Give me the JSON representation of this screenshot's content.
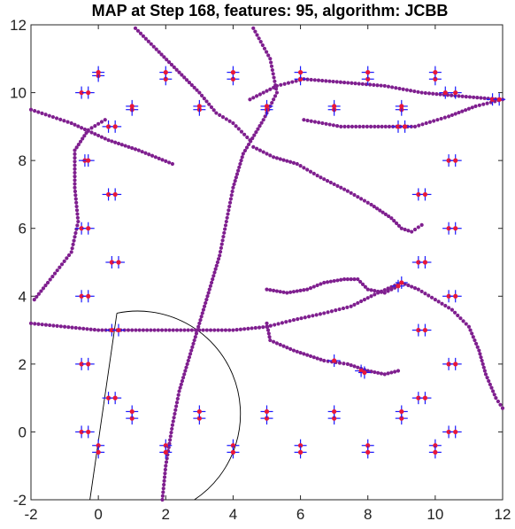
{
  "chart_data": {
    "type": "scatter",
    "title": "MAP at Step 168, features: 95, algorithm: JCBB",
    "xlabel": "",
    "ylabel": "",
    "xlim": [
      -2,
      12
    ],
    "ylim": [
      -2,
      12
    ],
    "xticks": [
      "-2",
      "0",
      "2",
      "4",
      "6",
      "8",
      "10",
      "12"
    ],
    "yticks": [
      "-2",
      "0",
      "2",
      "4",
      "6",
      "8",
      "10",
      "12"
    ],
    "grid": false,
    "colors": {
      "landmark_marker": "#1a1aff",
      "landmark_estimate": "#e8173a",
      "trajectory": "#7f1f8f",
      "fov": "#000000"
    },
    "landmarks": [
      [
        -0.5,
        10
      ],
      [
        -0.3,
        10
      ],
      [
        0,
        10.5
      ],
      [
        0,
        10.6
      ],
      [
        1,
        9.5
      ],
      [
        1,
        9.6
      ],
      [
        2,
        10.4
      ],
      [
        2,
        10.6
      ],
      [
        3,
        9.5
      ],
      [
        3,
        9.6
      ],
      [
        4,
        10.4
      ],
      [
        4,
        10.6
      ],
      [
        5,
        9.5
      ],
      [
        5,
        9.6
      ],
      [
        6,
        10.4
      ],
      [
        6,
        10.6
      ],
      [
        7,
        9.5
      ],
      [
        7,
        9.6
      ],
      [
        8,
        10.4
      ],
      [
        8,
        10.6
      ],
      [
        9,
        9.5
      ],
      [
        9,
        9.6
      ],
      [
        10,
        10.4
      ],
      [
        10,
        10.6
      ],
      [
        0.3,
        9
      ],
      [
        0.5,
        9
      ],
      [
        8.9,
        9
      ],
      [
        9.1,
        9
      ],
      [
        11.7,
        9.8
      ],
      [
        11.9,
        9.8
      ],
      [
        10.3,
        10
      ],
      [
        10.6,
        10
      ],
      [
        -0.4,
        8
      ],
      [
        -0.3,
        8
      ],
      [
        10.4,
        8
      ],
      [
        10.6,
        8
      ],
      [
        0.3,
        7
      ],
      [
        0.5,
        7
      ],
      [
        9.5,
        7
      ],
      [
        9.7,
        7
      ],
      [
        -0.5,
        6
      ],
      [
        -0.3,
        6
      ],
      [
        10.4,
        6
      ],
      [
        10.6,
        6
      ],
      [
        0.4,
        5
      ],
      [
        0.6,
        5
      ],
      [
        9.5,
        5
      ],
      [
        9.7,
        5
      ],
      [
        -0.5,
        4
      ],
      [
        -0.3,
        4
      ],
      [
        8.9,
        4.3
      ],
      [
        9.0,
        4.4
      ],
      [
        10.4,
        4
      ],
      [
        10.6,
        4
      ],
      [
        0.4,
        3
      ],
      [
        0.6,
        3
      ],
      [
        9.5,
        3
      ],
      [
        9.7,
        3
      ],
      [
        -0.5,
        2
      ],
      [
        -0.3,
        2
      ],
      [
        7,
        2.1
      ],
      [
        7.8,
        1.8
      ],
      [
        7.9,
        1.75
      ],
      [
        10.4,
        2
      ],
      [
        10.6,
        2
      ],
      [
        0.3,
        1
      ],
      [
        0.5,
        1
      ],
      [
        9.5,
        1
      ],
      [
        9.7,
        1
      ],
      [
        -0.5,
        0
      ],
      [
        -0.3,
        0
      ],
      [
        1,
        0.4
      ],
      [
        1,
        0.6
      ],
      [
        3,
        0.4
      ],
      [
        3,
        0.6
      ],
      [
        5,
        0.4
      ],
      [
        5,
        0.6
      ],
      [
        7,
        0.4
      ],
      [
        7,
        0.6
      ],
      [
        9,
        0.4
      ],
      [
        9,
        0.6
      ],
      [
        10.4,
        0
      ],
      [
        10.6,
        0
      ],
      [
        0,
        -0.4
      ],
      [
        0,
        -0.6
      ],
      [
        2,
        -0.4
      ],
      [
        2,
        -0.6
      ],
      [
        4,
        -0.4
      ],
      [
        4,
        -0.6
      ],
      [
        6,
        -0.4
      ],
      [
        6,
        -0.6
      ],
      [
        8,
        -0.4
      ],
      [
        8,
        -0.6
      ],
      [
        10,
        -0.4
      ],
      [
        10,
        -0.6
      ]
    ],
    "trajectories": [
      [
        [
          -2,
          9.5
        ],
        [
          -0.8,
          9.1
        ],
        [
          0.3,
          8.6
        ],
        [
          1.2,
          8.3
        ],
        [
          2.2,
          7.9
        ]
      ],
      [
        [
          -1.9,
          3.9
        ],
        [
          -1.5,
          4.4
        ],
        [
          -0.8,
          5.3
        ],
        [
          -0.6,
          6.2
        ],
        [
          -0.7,
          7.2
        ],
        [
          -0.7,
          8.3
        ],
        [
          -0.3,
          8.9
        ],
        [
          0.2,
          9.2
        ]
      ],
      [
        [
          1.1,
          11.9
        ],
        [
          1.8,
          11.2
        ],
        [
          2.4,
          10.6
        ],
        [
          3,
          10
        ],
        [
          3.5,
          9.4
        ],
        [
          4,
          9.1
        ],
        [
          4.5,
          8.6
        ]
      ],
      [
        [
          4.6,
          11.9
        ],
        [
          5.1,
          11
        ],
        [
          5.3,
          10
        ],
        [
          4.9,
          9.2
        ],
        [
          4.3,
          8.2
        ],
        [
          4,
          7.2
        ],
        [
          3.8,
          6.2
        ],
        [
          3.6,
          5.2
        ],
        [
          3.3,
          4.2
        ],
        [
          3,
          3.2
        ],
        [
          2.7,
          2.2
        ],
        [
          2.4,
          1.2
        ],
        [
          2.2,
          0.2
        ],
        [
          2,
          -1
        ],
        [
          1.9,
          -2
        ]
      ],
      [
        [
          4.5,
          9.8
        ],
        [
          5.3,
          10.2
        ],
        [
          6.1,
          10.4
        ],
        [
          7.3,
          10.3
        ],
        [
          8.5,
          10.2
        ],
        [
          9.6,
          10
        ],
        [
          10.7,
          9.9
        ],
        [
          11.9,
          9.8
        ]
      ],
      [
        [
          6.1,
          9.2
        ],
        [
          7.2,
          9
        ],
        [
          8.2,
          9
        ],
        [
          9.4,
          9
        ],
        [
          10.4,
          9.3
        ],
        [
          11.2,
          9.6
        ],
        [
          12,
          9.8
        ]
      ],
      [
        [
          4.6,
          8.4
        ],
        [
          5.2,
          8.1
        ],
        [
          5.9,
          7.9
        ],
        [
          6.6,
          7.5
        ],
        [
          7.4,
          7.1
        ],
        [
          8.1,
          6.7
        ],
        [
          8.7,
          6.3
        ],
        [
          9,
          6
        ],
        [
          9.3,
          5.9
        ],
        [
          9.6,
          6.1
        ]
      ],
      [
        [
          -2,
          3.2
        ],
        [
          -1,
          3.1
        ],
        [
          0,
          3
        ],
        [
          1,
          3
        ],
        [
          2,
          3
        ],
        [
          3,
          3
        ],
        [
          4,
          3
        ],
        [
          5,
          3.1
        ]
      ],
      [
        [
          5,
          3.1
        ],
        [
          5.8,
          3.3
        ],
        [
          6.7,
          3.5
        ],
        [
          7.5,
          3.7
        ],
        [
          8.3,
          4.1
        ],
        [
          9,
          4.4
        ],
        [
          9.5,
          4.2
        ],
        [
          10,
          3.9
        ],
        [
          10.5,
          3.6
        ],
        [
          11,
          3.1
        ],
        [
          11.3,
          2.4
        ],
        [
          11.5,
          1.7
        ],
        [
          11.8,
          1
        ],
        [
          12,
          0.7
        ]
      ],
      [
        [
          5,
          3.2
        ],
        [
          5.1,
          2.7
        ],
        [
          5.8,
          2.4
        ],
        [
          6.7,
          2.1
        ],
        [
          7.4,
          2
        ],
        [
          8,
          1.8
        ],
        [
          8.5,
          1.7
        ],
        [
          8.9,
          1.8
        ]
      ],
      [
        [
          5,
          4.2
        ],
        [
          5.6,
          4.1
        ],
        [
          6.2,
          4.2
        ],
        [
          6.7,
          4.4
        ],
        [
          7.3,
          4.5
        ],
        [
          7.7,
          4.5
        ],
        [
          8,
          4.2
        ],
        [
          8.5,
          4.1
        ],
        [
          8.9,
          4.3
        ]
      ]
    ],
    "fov_origin": [
      0.55,
      3.5
    ],
    "fov_left_end": [
      -0.25,
      -2
    ],
    "fov_right_end": [
      2.85,
      -2
    ],
    "fov_arc_through": [
      3.6,
      0
    ]
  }
}
